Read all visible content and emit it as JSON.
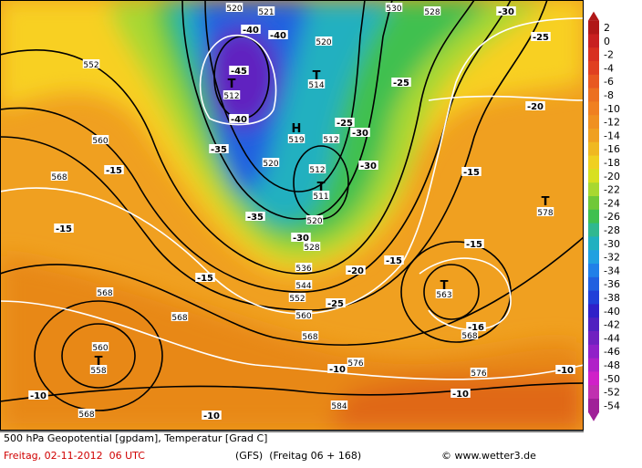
{
  "map": {
    "contour_labels": [
      "552",
      "560",
      "568",
      "-15",
      "-15",
      "-15",
      "568",
      "568",
      "560",
      "T",
      "558",
      "-10",
      "568",
      "-10",
      "584",
      "-10",
      "576",
      "576",
      "-10",
      "-10",
      "T",
      "563",
      "-16",
      "568",
      "-15",
      "T",
      "578",
      "-15",
      "-20",
      "-25",
      "-30",
      "530",
      "528",
      "-25",
      "520",
      "521",
      "-40",
      "-40",
      "520",
      "T",
      "514",
      "-45",
      "T",
      "512",
      "-40",
      "-35",
      "H",
      "519",
      "520",
      "512",
      "-30",
      "-25",
      "512",
      "T",
      "511",
      "-30",
      "520",
      "-35",
      "-30",
      "528",
      "536",
      "544",
      "552",
      "-25",
      "560",
      "568",
      "-20",
      "-15"
    ]
  },
  "legend": {
    "labels": [
      2,
      0,
      -2,
      -4,
      -6,
      -8,
      -10,
      -12,
      -14,
      -16,
      -18,
      -20,
      -22,
      -24,
      -26,
      -28,
      -30,
      -32,
      -34,
      -36,
      -38,
      -40,
      -42,
      -44,
      -46,
      -48,
      -50,
      -52,
      -54
    ]
  },
  "footer": {
    "line1": "500 hPa Geopotential [gpdam], Temperatur [Grad C]",
    "date": "Freitag, 02-11-2012  06 UTC",
    "model": "(GFS)  (Freitag 06 + 168)",
    "copyright": "© www.wetter3.de"
  }
}
